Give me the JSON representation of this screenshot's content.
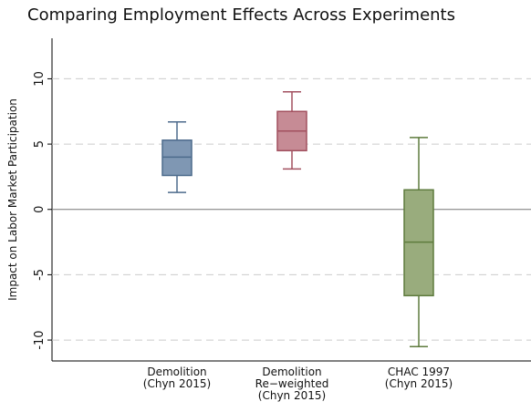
{
  "chart_data": {
    "type": "box",
    "title": "Comparing Employment Effects Across Experiments",
    "y_label": "Impact on Labor Market Participation",
    "categories": [
      [
        "Demolition",
        "(Chyn 2015)"
      ],
      [
        "Demolition",
        "Re−weighted",
        "(Chyn 2015)"
      ],
      [
        "CHAC 1997",
        "(Chyn 2015)"
      ]
    ],
    "boxes": [
      {
        "whisker_low": 1.3,
        "q1": 2.6,
        "median": 4.0,
        "q3": 5.3,
        "whisker_high": 6.7,
        "color": "#7f97b3",
        "edge": "#4d6b8c"
      },
      {
        "whisker_low": 3.1,
        "q1": 4.5,
        "median": 6.0,
        "q3": 7.5,
        "whisker_high": 9.0,
        "color": "#c68b95",
        "edge": "#a2505f"
      },
      {
        "whisker_low": -10.5,
        "q1": -6.6,
        "median": -2.5,
        "q3": 1.5,
        "whisker_high": 5.5,
        "color": "#99ac7d",
        "edge": "#5e7b3d"
      }
    ],
    "ylim": [
      -11.6,
      13.1
    ],
    "yticks": [
      -10,
      -5,
      0,
      5,
      10
    ],
    "grid": true,
    "yline": 0
  }
}
